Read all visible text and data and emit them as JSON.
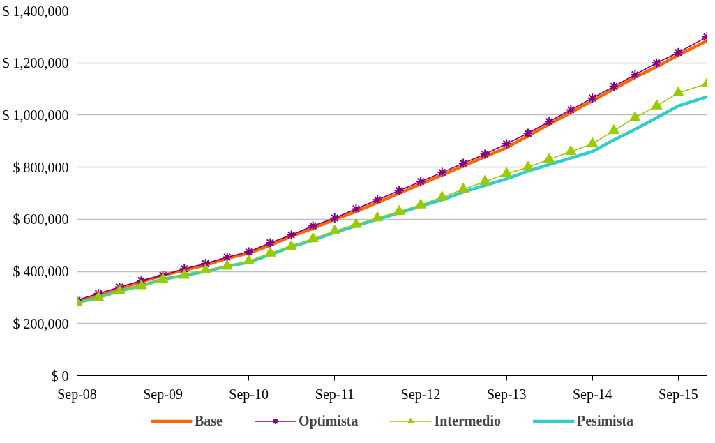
{
  "chart_data": {
    "type": "line",
    "x": [
      "2008-09",
      "2008-12",
      "2009-03",
      "2009-06",
      "2009-09",
      "2009-12",
      "2010-03",
      "2010-06",
      "2010-09",
      "2010-12",
      "2011-03",
      "2011-06",
      "2011-09",
      "2011-12",
      "2012-03",
      "2012-06",
      "2012-09",
      "2012-12",
      "2013-03",
      "2013-06",
      "2013-09",
      "2013-12",
      "2014-03",
      "2014-06",
      "2014-09",
      "2014-12",
      "2015-03",
      "2015-06",
      "2015-09",
      "2016-01"
    ],
    "series": [
      {
        "name": "Base",
        "color": "#ff6600",
        "marker": "none",
        "values": [
          285000,
          310000,
          335000,
          360000,
          385000,
          405000,
          425000,
          450000,
          470000,
          500000,
          535000,
          565000,
          600000,
          630000,
          665000,
          700000,
          735000,
          770000,
          805000,
          840000,
          875000,
          920000,
          965000,
          1010000,
          1055000,
          1100000,
          1145000,
          1185000,
          1230000,
          1285000
        ]
      },
      {
        "name": "Optimista",
        "color": "#800080",
        "marker": "cross",
        "values": [
          290000,
          315000,
          340000,
          365000,
          385000,
          410000,
          430000,
          455000,
          475000,
          510000,
          540000,
          575000,
          605000,
          640000,
          675000,
          710000,
          745000,
          780000,
          815000,
          850000,
          890000,
          930000,
          975000,
          1020000,
          1065000,
          1110000,
          1155000,
          1200000,
          1240000,
          1300000
        ]
      },
      {
        "name": "Intermedio",
        "color": "#99cc00",
        "marker": "triangle",
        "values": [
          280000,
          300000,
          325000,
          345000,
          370000,
          385000,
          405000,
          420000,
          440000,
          470000,
          495000,
          525000,
          555000,
          580000,
          605000,
          630000,
          655000,
          685000,
          715000,
          745000,
          775000,
          800000,
          830000,
          860000,
          890000,
          940000,
          990000,
          1035000,
          1085000,
          1120000
        ]
      },
      {
        "name": "Pesimista",
        "color": "#33cccc",
        "marker": "none",
        "values": [
          280000,
          300000,
          325000,
          345000,
          370000,
          385000,
          400000,
          420000,
          435000,
          465000,
          495000,
          520000,
          550000,
          575000,
          600000,
          625000,
          650000,
          675000,
          705000,
          730000,
          755000,
          785000,
          810000,
          835000,
          860000,
          905000,
          945000,
          990000,
          1035000,
          1070000
        ]
      }
    ],
    "xlim": [
      "2008-09",
      "2016-01"
    ],
    "xticks": [
      {
        "value": "2008-09",
        "label": "Sep-08"
      },
      {
        "value": "2009-09",
        "label": "Sep-09"
      },
      {
        "value": "2010-09",
        "label": "Sep-10"
      },
      {
        "value": "2011-09",
        "label": "Sep-11"
      },
      {
        "value": "2012-09",
        "label": "Sep-12"
      },
      {
        "value": "2013-09",
        "label": "Sep-13"
      },
      {
        "value": "2014-09",
        "label": "Sep-14"
      },
      {
        "value": "2015-09",
        "label": "Sep-15"
      }
    ],
    "ylim": [
      0,
      1400000
    ],
    "yticks": [
      {
        "value": 0,
        "label": "$ 0"
      },
      {
        "value": 200000,
        "label": "$ 200,000"
      },
      {
        "value": 400000,
        "label": "$ 400,000"
      },
      {
        "value": 600000,
        "label": "$ 600,000"
      },
      {
        "value": 800000,
        "label": "$ 800,000"
      },
      {
        "value": 1000000,
        "label": "$ 1,000,000"
      },
      {
        "value": 1200000,
        "label": "$ 1,200,000"
      },
      {
        "value": 1400000,
        "label": "$ 1,400,000"
      }
    ],
    "grid": "y",
    "legend": "bottom"
  }
}
